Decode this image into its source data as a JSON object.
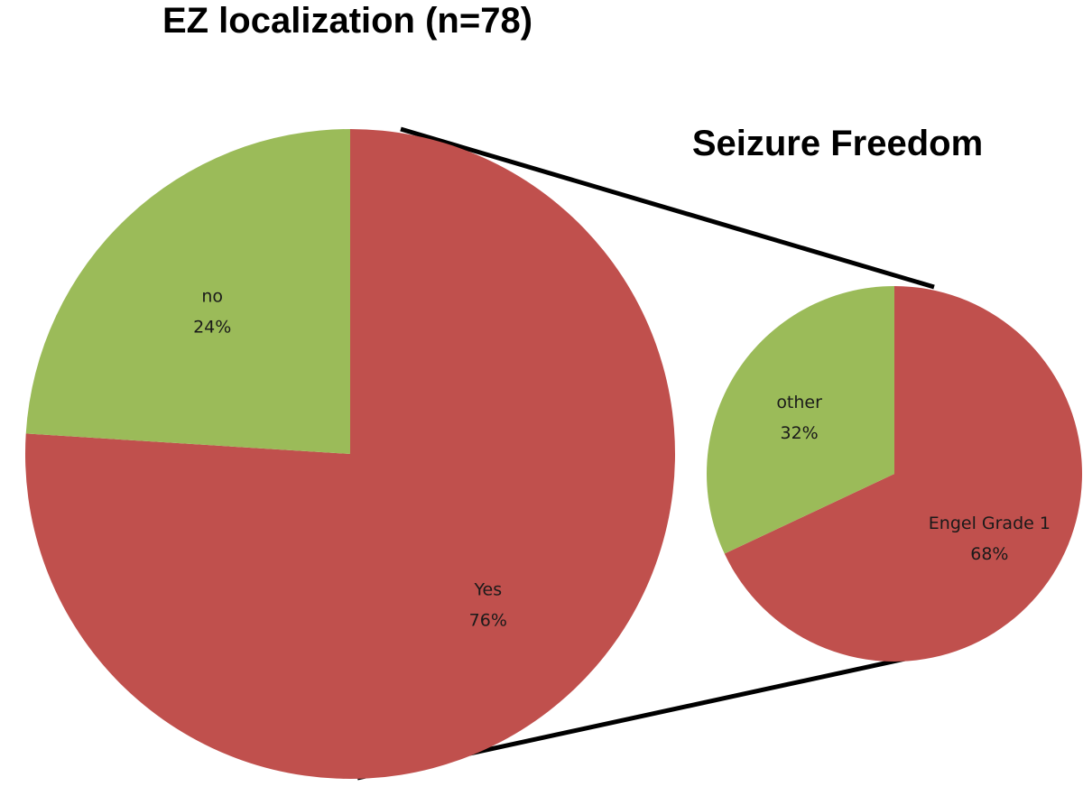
{
  "chart_data": [
    {
      "type": "pie",
      "title": "EZ localization (n=78)",
      "slices": [
        {
          "label": "Yes",
          "value": 76,
          "value_label": "76%",
          "color": "#c0504d"
        },
        {
          "label": "no",
          "value": 24,
          "value_label": "24%",
          "color": "#9bbb59"
        }
      ],
      "exploded_slice": "Yes"
    },
    {
      "type": "pie",
      "title": "Seizure Freedom",
      "slices": [
        {
          "label": "Engel Grade 1",
          "value": 68,
          "value_label": "68%",
          "color": "#c0504d"
        },
        {
          "label": "other",
          "value": 32,
          "value_label": "32%",
          "color": "#9bbb59"
        }
      ],
      "breakdown_of": "Yes"
    }
  ]
}
